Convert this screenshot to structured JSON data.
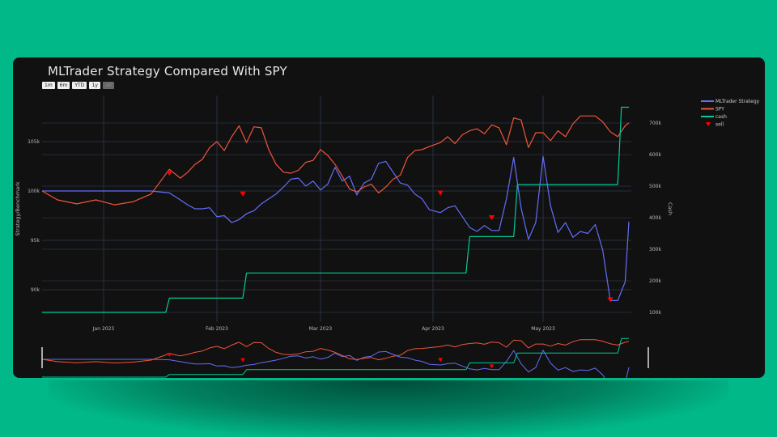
{
  "chart_data": {
    "type": "line",
    "title": "MLTrader Strategy Compared With SPY",
    "xlabel": "",
    "ylabel": "Strategy/Benchmark",
    "y2label": "Cash",
    "x_ticks": [
      "Jan 2023",
      "Feb 2023",
      "Mar 2023",
      "Apr 2023",
      "May 2023"
    ],
    "y_ticks": [
      "90k",
      "95k",
      "100k",
      "105k"
    ],
    "y2_ticks": [
      "100k",
      "200k",
      "300k",
      "400k",
      "500k",
      "600k",
      "700k"
    ],
    "ylim": [
      87500,
      107500
    ],
    "y2lim": [
      80000,
      760000
    ],
    "grid": true,
    "legend_position": "right-top",
    "range_selector": [
      "1m",
      "6m",
      "YTD",
      "1y",
      "all"
    ],
    "range_selector_active": "all",
    "series": [
      {
        "name": "MLTrader Strategy",
        "axis": "y",
        "color": "#636efa",
        "x": [
          "2022-12-16",
          "2022-12-20",
          "2022-12-25",
          "2022-12-30",
          "2023-01-04",
          "2023-01-09",
          "2023-01-14",
          "2023-01-19",
          "2023-01-22",
          "2023-01-24",
          "2023-01-26",
          "2023-01-28",
          "2023-01-30",
          "2023-02-01",
          "2023-02-03",
          "2023-02-05",
          "2023-02-07",
          "2023-02-09",
          "2023-02-11",
          "2023-02-13",
          "2023-02-15",
          "2023-02-17",
          "2023-02-19",
          "2023-02-21",
          "2023-02-23",
          "2023-02-25",
          "2023-02-27",
          "2023-03-01",
          "2023-03-03",
          "2023-03-05",
          "2023-03-07",
          "2023-03-09",
          "2023-03-11",
          "2023-03-13",
          "2023-03-15",
          "2023-03-17",
          "2023-03-19",
          "2023-03-21",
          "2023-03-23",
          "2023-03-25",
          "2023-03-27",
          "2023-03-29",
          "2023-03-31",
          "2023-04-03",
          "2023-04-05",
          "2023-04-07",
          "2023-04-09",
          "2023-04-11",
          "2023-04-13",
          "2023-04-15",
          "2023-04-17",
          "2023-04-19",
          "2023-04-21",
          "2023-04-23",
          "2023-04-25",
          "2023-04-27",
          "2023-04-29",
          "2023-05-01",
          "2023-05-03",
          "2023-05-05",
          "2023-05-07",
          "2023-05-09",
          "2023-05-11",
          "2023-05-13",
          "2023-05-15",
          "2023-05-17",
          "2023-05-19",
          "2023-05-21",
          "2023-05-23",
          "2023-05-24"
        ],
        "values": [
          100000,
          100000,
          100000,
          100000,
          100000,
          100000,
          100000,
          99800,
          99100,
          98600,
          98200,
          98200,
          98300,
          97400,
          97500,
          96800,
          97100,
          97700,
          98000,
          98700,
          99200,
          99700,
          100400,
          101200,
          101300,
          100500,
          101000,
          100100,
          100700,
          102400,
          101000,
          101500,
          99600,
          100800,
          101200,
          102800,
          103000,
          101900,
          100800,
          100600,
          99700,
          99200,
          98100,
          97800,
          98300,
          98500,
          97400,
          96300,
          95900,
          96500,
          96000,
          96000,
          99200,
          103400,
          98300,
          95100,
          96800,
          103500,
          98500,
          95800,
          96800,
          95300,
          95900,
          95700,
          96600,
          94000,
          88900,
          88900,
          90800,
          96900
        ],
        "style": "line"
      },
      {
        "name": "SPY",
        "axis": "y",
        "color": "#ef553b",
        "x": [
          "2022-12-16",
          "2022-12-20",
          "2022-12-25",
          "2022-12-30",
          "2023-01-04",
          "2023-01-09",
          "2023-01-14",
          "2023-01-19",
          "2023-01-22",
          "2023-01-24",
          "2023-01-26",
          "2023-01-28",
          "2023-01-30",
          "2023-02-01",
          "2023-02-03",
          "2023-02-05",
          "2023-02-07",
          "2023-02-09",
          "2023-02-11",
          "2023-02-13",
          "2023-02-15",
          "2023-02-17",
          "2023-02-19",
          "2023-02-21",
          "2023-02-23",
          "2023-02-25",
          "2023-02-27",
          "2023-03-01",
          "2023-03-03",
          "2023-03-05",
          "2023-03-07",
          "2023-03-09",
          "2023-03-11",
          "2023-03-13",
          "2023-03-15",
          "2023-03-17",
          "2023-03-19",
          "2023-03-21",
          "2023-03-23",
          "2023-03-25",
          "2023-03-27",
          "2023-03-29",
          "2023-03-31",
          "2023-04-03",
          "2023-04-05",
          "2023-04-07",
          "2023-04-09",
          "2023-04-11",
          "2023-04-13",
          "2023-04-15",
          "2023-04-17",
          "2023-04-19",
          "2023-04-21",
          "2023-04-23",
          "2023-04-25",
          "2023-04-27",
          "2023-04-29",
          "2023-05-01",
          "2023-05-03",
          "2023-05-05",
          "2023-05-07",
          "2023-05-09",
          "2023-05-11",
          "2023-05-13",
          "2023-05-15",
          "2023-05-17",
          "2023-05-19",
          "2023-05-21",
          "2023-05-23",
          "2023-05-24"
        ],
        "values": [
          100000,
          99100,
          98700,
          99100,
          98600,
          98900,
          99700,
          102200,
          101300,
          101900,
          102700,
          103200,
          104400,
          105000,
          104100,
          105500,
          106600,
          104900,
          106500,
          106400,
          104200,
          102700,
          101900,
          101800,
          102100,
          102900,
          103100,
          104200,
          103600,
          102700,
          101500,
          100200,
          99900,
          100400,
          100700,
          99800,
          100400,
          101200,
          101600,
          103400,
          104100,
          104200,
          104500,
          104900,
          105500,
          104800,
          105700,
          106100,
          106300,
          105800,
          106700,
          106400,
          104700,
          107400,
          107200,
          104400,
          105900,
          105900,
          105100,
          106100,
          105500,
          106800,
          107600,
          107600,
          107600,
          107000,
          106000,
          105500,
          106600,
          106900
        ],
        "style": "line"
      },
      {
        "name": "cash",
        "axis": "y2",
        "color": "#00cc96",
        "x": [
          "2022-12-16",
          "2023-01-18",
          "2023-01-19",
          "2023-02-08",
          "2023-02-09",
          "2023-04-10",
          "2023-04-11",
          "2023-04-23",
          "2023-04-24",
          "2023-05-21",
          "2023-05-22",
          "2023-05-24"
        ],
        "values": [
          100000,
          100000,
          145000,
          145000,
          225000,
          225000,
          340000,
          340000,
          505000,
          505000,
          750000,
          750000
        ],
        "style": "step"
      },
      {
        "name": "sell",
        "axis": "y",
        "color": "#ff0000",
        "marker": "triangle-down",
        "x": [
          "2023-01-19",
          "2023-02-08",
          "2023-04-03",
          "2023-04-17",
          "2023-05-19"
        ],
        "values": [
          101800,
          99700,
          99800,
          97300,
          89000
        ],
        "style": "markers"
      }
    ]
  },
  "ui": {
    "title": "MLTrader Strategy Compared With SPY",
    "range_buttons": [
      "1m",
      "6m",
      "YTD",
      "1y",
      "all"
    ],
    "legend": [
      "MLTrader Strategy",
      "SPY",
      "cash",
      "sell"
    ],
    "y_axis_title": "Strategy/Benchmark",
    "y2_axis_title": "Cash"
  }
}
